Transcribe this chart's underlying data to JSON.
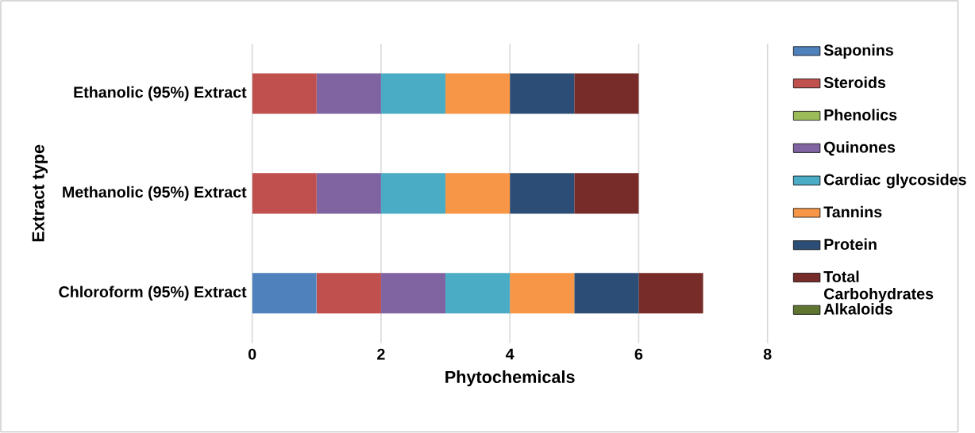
{
  "chart_data": {
    "type": "bar",
    "orientation": "horizontal",
    "stacked": true,
    "xlabel": "Phytochemicals",
    "ylabel": "Extract type",
    "categories": [
      "Ethanolic (95%) Extract",
      "Methanolic (95%) Extract",
      "Chloroform (95%) Extract"
    ],
    "series": [
      {
        "name": "Saponins",
        "color": "#4f81bd",
        "values": [
          0,
          0,
          1
        ]
      },
      {
        "name": "Steroids",
        "color": "#c0504d",
        "values": [
          1,
          1,
          1
        ]
      },
      {
        "name": "Phenolics",
        "color": "#9bbb59",
        "values": [
          0,
          0,
          0
        ]
      },
      {
        "name": "Quinones",
        "color": "#8064a2",
        "values": [
          1,
          1,
          1
        ]
      },
      {
        "name": "Cardiac glycosides",
        "color": "#4bacc6",
        "values": [
          1,
          1,
          1
        ]
      },
      {
        "name": "Tannins",
        "color": "#f79646",
        "values": [
          1,
          1,
          1
        ]
      },
      {
        "name": "Protein",
        "color": "#2c4d75",
        "values": [
          1,
          1,
          1
        ]
      },
      {
        "name": "Total Carbohydrates",
        "color": "#772c2a",
        "values": [
          1,
          1,
          1
        ]
      },
      {
        "name": "Alkaloids",
        "color": "#5f7530",
        "values": [
          0,
          0,
          0
        ]
      }
    ],
    "xlim": [
      0,
      8
    ],
    "xticks": [
      0,
      2,
      4,
      6,
      8
    ],
    "grid": "x",
    "legend": "right"
  }
}
